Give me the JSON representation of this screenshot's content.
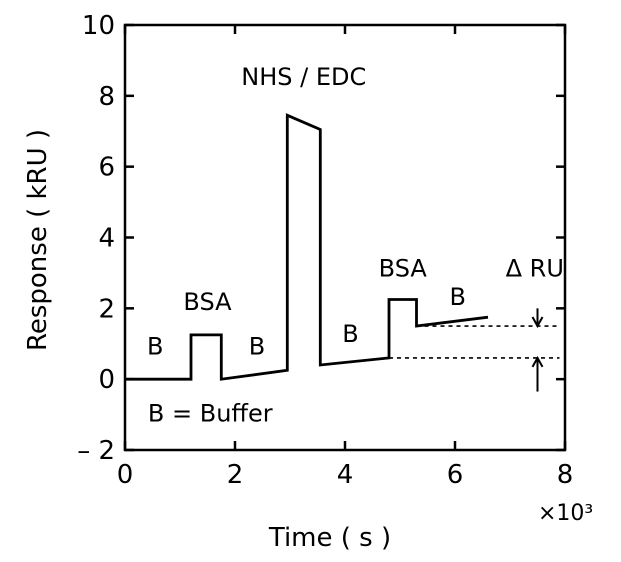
{
  "chart_data": {
    "type": "line",
    "xlabel": "Time ( s )",
    "ylabel": "Response  ( kRU )",
    "x_multiplier": "×10³",
    "xlim": [
      0,
      8
    ],
    "ylim": [
      -2,
      10
    ],
    "x_ticks": [
      0,
      2,
      4,
      6,
      8
    ],
    "y_ticks": [
      -2,
      0,
      2,
      4,
      6,
      8,
      10
    ],
    "grid": false,
    "series": [
      {
        "x": [
          0,
          1.2,
          1.2,
          1.75,
          1.75,
          2.95,
          2.95,
          3.55,
          3.55,
          4.8,
          4.8,
          5.3,
          5.3,
          6.6
        ],
        "y": [
          0,
          0,
          1.25,
          1.25,
          0,
          0.25,
          7.45,
          7.05,
          0.4,
          0.6,
          2.25,
          2.25,
          1.5,
          1.75
        ]
      }
    ],
    "reference_lines": [
      {
        "x_start": 4.8,
        "x_end": 7.9,
        "y": 0.6
      },
      {
        "x_start": 5.3,
        "x_end": 7.9,
        "y": 1.5
      }
    ],
    "arrows": [
      {
        "x": 7.5,
        "from_y": 2.0,
        "to_y": 1.5
      },
      {
        "x": 7.5,
        "from_y": -0.35,
        "to_y": 0.6
      }
    ],
    "annotations": [
      {
        "text": "B",
        "x": 0.55,
        "y": 0.7
      },
      {
        "text": "BSA",
        "x": 1.5,
        "y": 1.95
      },
      {
        "text": "B",
        "x": 2.4,
        "y": 0.7
      },
      {
        "text": "NHS / EDC",
        "x": 3.25,
        "y": 8.3
      },
      {
        "text": "B",
        "x": 4.1,
        "y": 1.05
      },
      {
        "text": "BSA",
        "x": 5.05,
        "y": 2.9
      },
      {
        "text": "B",
        "x": 6.05,
        "y": 2.1
      },
      {
        "text": "Δ RU",
        "x": 7.45,
        "y": 2.9
      },
      {
        "text": "B = Buffer",
        "x": 1.55,
        "y": -1.2
      }
    ]
  }
}
